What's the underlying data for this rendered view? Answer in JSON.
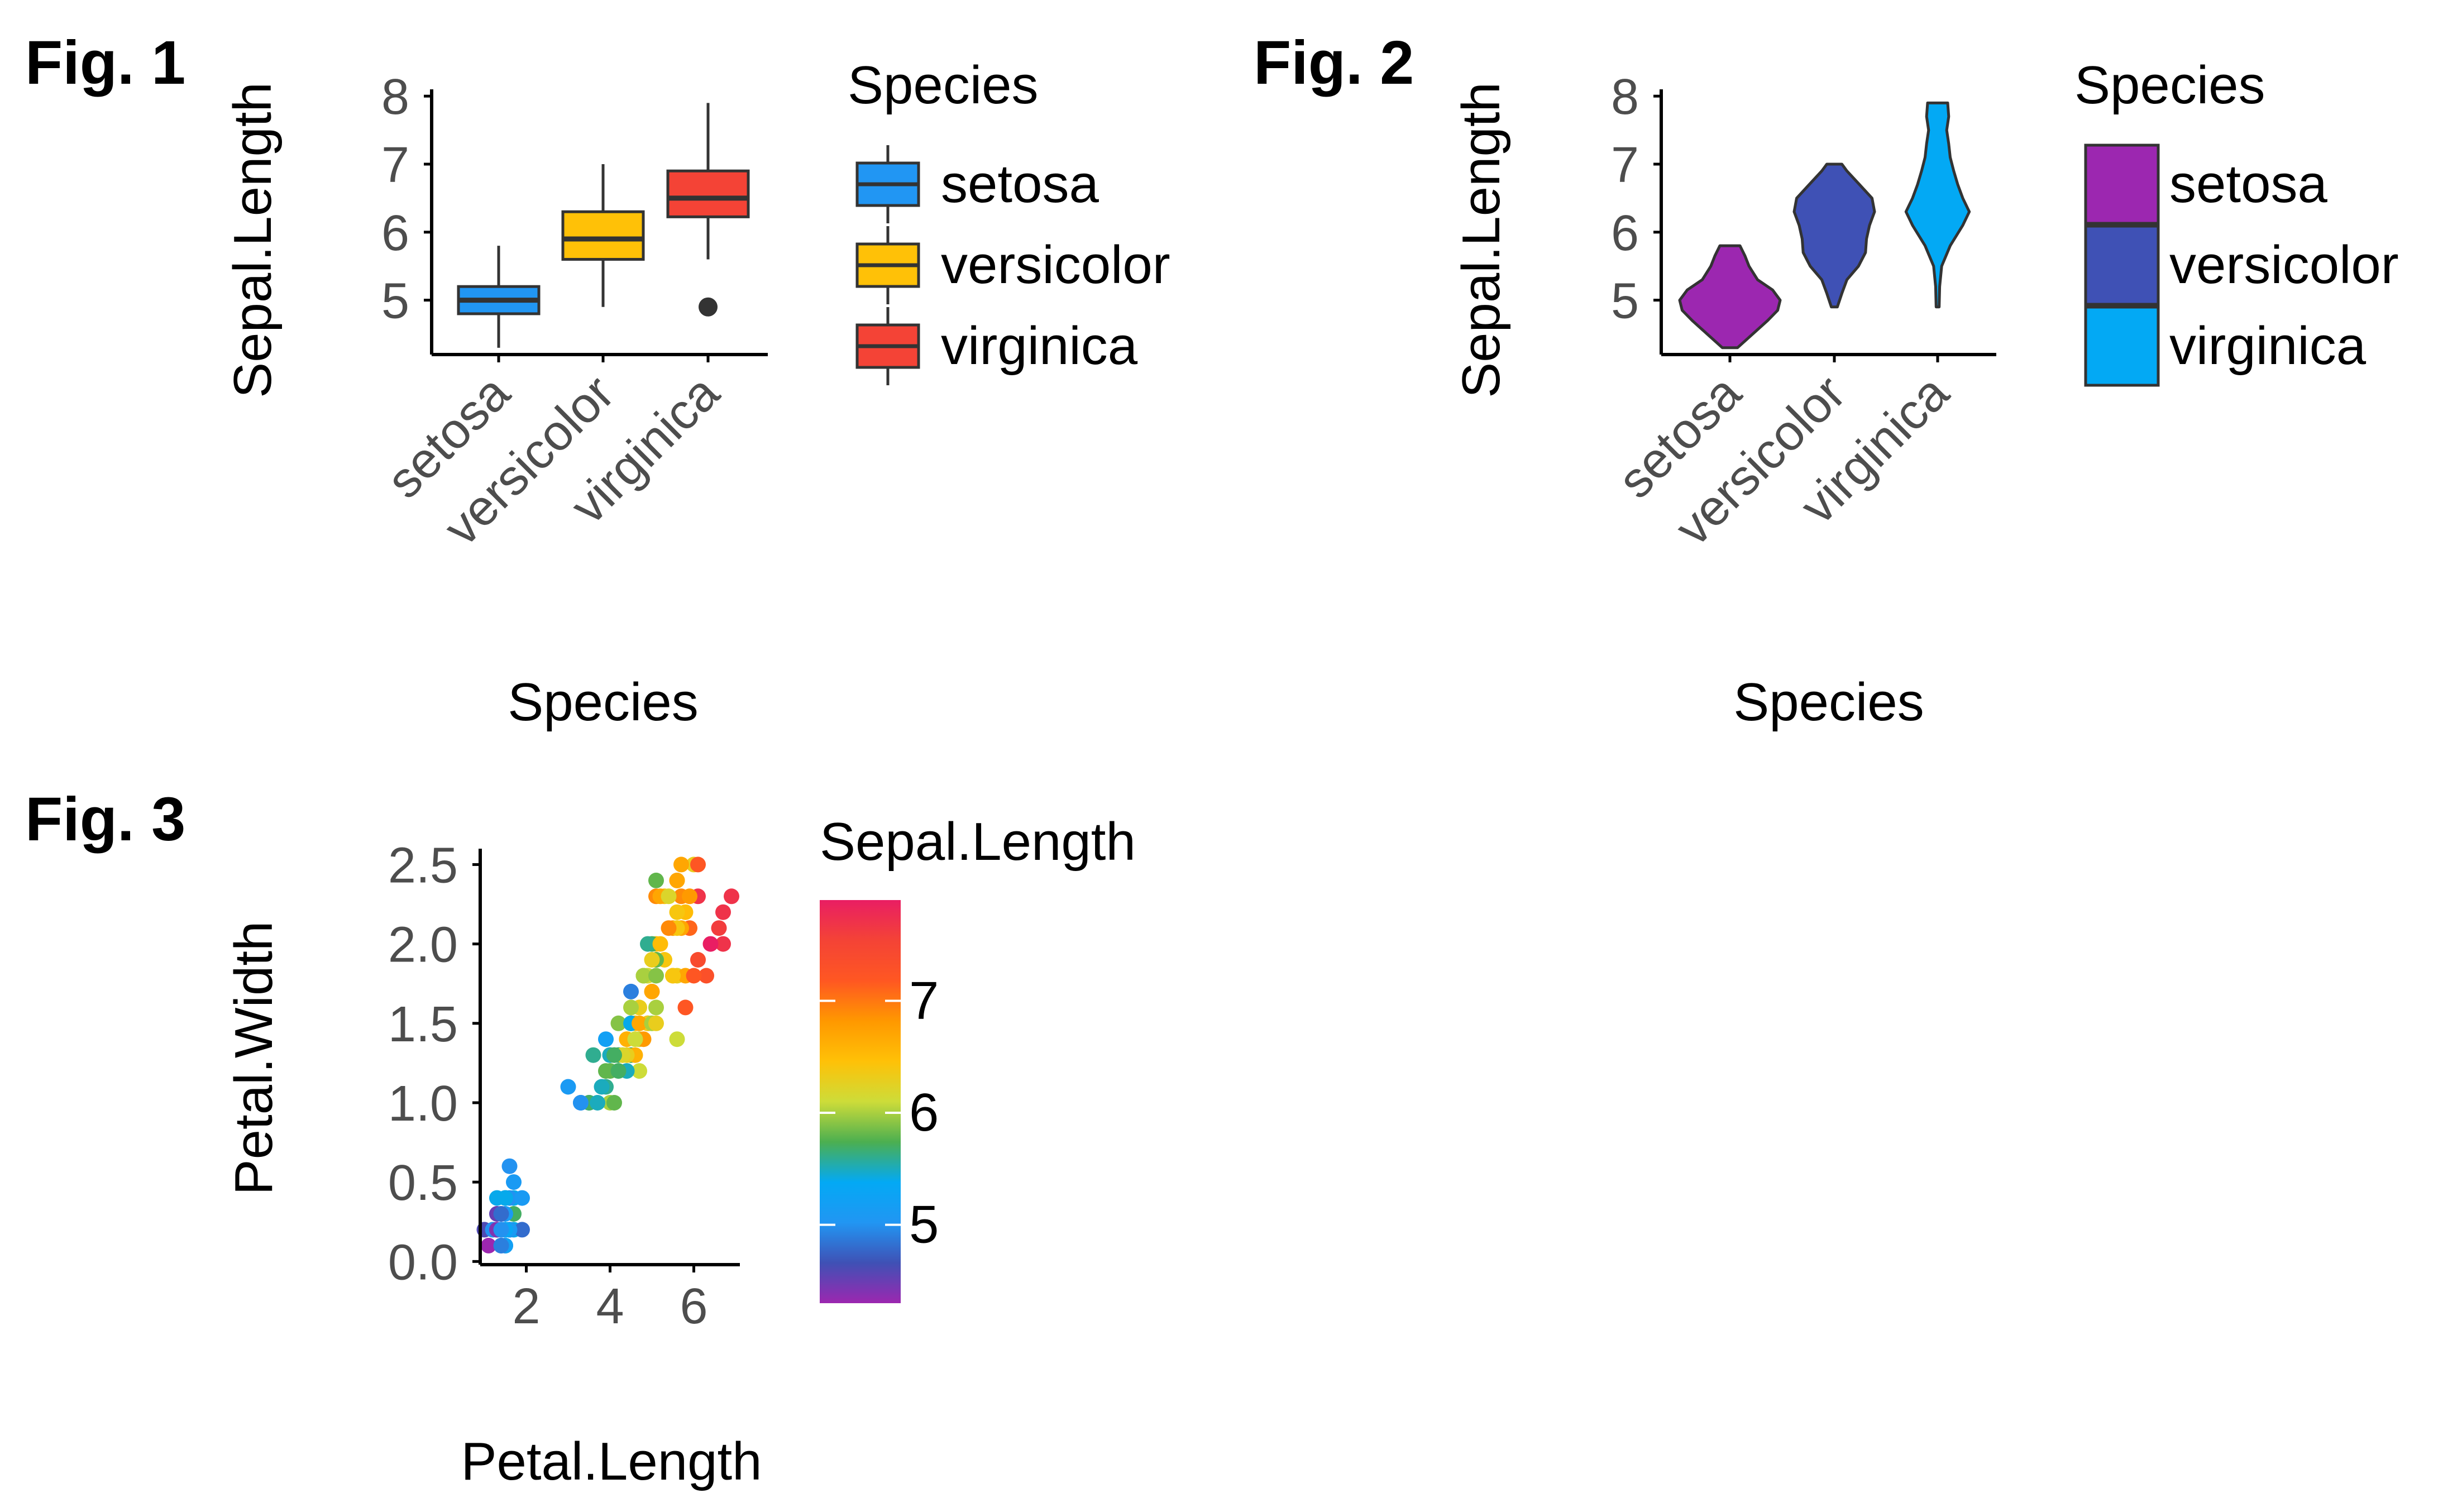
{
  "figures": {
    "fig1_tag": "Fig.  1",
    "fig2_tag": "Fig.  2",
    "fig3_tag": "Fig.  3"
  },
  "chart_data": [
    {
      "type": "boxplot",
      "xlabel": "Species",
      "ylabel": "Sepal.Length",
      "categories": [
        "setosa",
        "versicolor",
        "virginica"
      ],
      "yticks": [
        5,
        6,
        7,
        8
      ],
      "ylim": [
        4.2,
        8.1
      ],
      "legend": {
        "title": "Species",
        "placement": "right"
      },
      "colors": [
        "#2196F3",
        "#FFC107",
        "#F44336"
      ],
      "series": [
        {
          "name": "setosa",
          "min": 4.3,
          "q1": 4.8,
          "median": 5.0,
          "q3": 5.2,
          "max": 5.8,
          "outliers": []
        },
        {
          "name": "versicolor",
          "min": 4.9,
          "q1": 5.6,
          "median": 5.9,
          "q3": 6.3,
          "max": 7.0,
          "outliers": []
        },
        {
          "name": "virginica",
          "min": 5.6,
          "q1": 6.225,
          "median": 6.5,
          "q3": 6.9,
          "max": 7.9,
          "outliers": [
            4.9
          ]
        }
      ]
    },
    {
      "type": "violin",
      "xlabel": "Species",
      "ylabel": "Sepal.Length",
      "categories": [
        "setosa",
        "versicolor",
        "virginica"
      ],
      "yticks": [
        5,
        6,
        7,
        8
      ],
      "ylim": [
        4.2,
        8.1
      ],
      "legend": {
        "title": "Species",
        "placement": "right"
      },
      "colors": [
        "#9C27B0",
        "#3F51B5",
        "#03A9F4"
      ],
      "series": [
        {
          "name": "setosa",
          "range": [
            4.3,
            5.8
          ],
          "density": [
            [
              4.3,
              0.15
            ],
            [
              4.5,
              0.45
            ],
            [
              4.7,
              0.75
            ],
            [
              4.85,
              0.95
            ],
            [
              5.0,
              1.0
            ],
            [
              5.15,
              0.85
            ],
            [
              5.3,
              0.55
            ],
            [
              5.5,
              0.38
            ],
            [
              5.65,
              0.3
            ],
            [
              5.8,
              0.2
            ]
          ]
        },
        {
          "name": "versicolor",
          "range": [
            4.9,
            7.0
          ],
          "density": [
            [
              4.9,
              0.06
            ],
            [
              5.1,
              0.15
            ],
            [
              5.3,
              0.25
            ],
            [
              5.5,
              0.48
            ],
            [
              5.7,
              0.62
            ],
            [
              5.9,
              0.64
            ],
            [
              6.1,
              0.7
            ],
            [
              6.3,
              0.8
            ],
            [
              6.5,
              0.75
            ],
            [
              6.7,
              0.5
            ],
            [
              6.9,
              0.25
            ],
            [
              7.0,
              0.15
            ]
          ]
        },
        {
          "name": "virginica",
          "range": [
            4.9,
            7.9
          ],
          "density": [
            [
              4.9,
              0.03
            ],
            [
              5.2,
              0.04
            ],
            [
              5.5,
              0.08
            ],
            [
              5.8,
              0.25
            ],
            [
              6.1,
              0.5
            ],
            [
              6.3,
              0.63
            ],
            [
              6.5,
              0.5
            ],
            [
              6.7,
              0.4
            ],
            [
              6.9,
              0.32
            ],
            [
              7.1,
              0.25
            ],
            [
              7.3,
              0.22
            ],
            [
              7.5,
              0.18
            ],
            [
              7.7,
              0.22
            ],
            [
              7.9,
              0.2
            ]
          ]
        }
      ]
    },
    {
      "type": "scatter",
      "xlabel": "Petal.Length",
      "ylabel": "Petal.Width",
      "xticks": [
        2,
        4,
        6
      ],
      "yticks": [
        0.0,
        0.5,
        1.0,
        1.5,
        2.0,
        2.5
      ],
      "ytick_labels": [
        "0.0",
        "0.5",
        "1.0",
        "1.5",
        "2.0",
        "2.5"
      ],
      "xlim": [
        0.9,
        7.1
      ],
      "ylim": [
        -0.02,
        2.6
      ],
      "legend": {
        "title": "Sepal.Length",
        "placement": "right",
        "ticks": [
          5,
          6,
          7
        ],
        "range": [
          4.3,
          7.9
        ]
      },
      "colormap": [
        "#9C27B0",
        "#3F51B5",
        "#2196F3",
        "#03A9F4",
        "#4CAF50",
        "#CDDC39",
        "#FFC107",
        "#FF9800",
        "#FF5722",
        "#F44336",
        "#E91E63"
      ],
      "points": [
        [
          1.4,
          0.2,
          5.1
        ],
        [
          1.4,
          0.2,
          4.9
        ],
        [
          1.3,
          0.2,
          4.7
        ],
        [
          1.5,
          0.2,
          4.6
        ],
        [
          1.4,
          0.2,
          5.0
        ],
        [
          1.7,
          0.4,
          5.4
        ],
        [
          1.4,
          0.3,
          4.6
        ],
        [
          1.5,
          0.2,
          5.0
        ],
        [
          1.4,
          0.2,
          4.4
        ],
        [
          1.5,
          0.1,
          4.9
        ],
        [
          1.5,
          0.2,
          5.4
        ],
        [
          1.6,
          0.2,
          4.8
        ],
        [
          1.4,
          0.1,
          4.8
        ],
        [
          1.1,
          0.1,
          4.3
        ],
        [
          1.2,
          0.2,
          5.8
        ],
        [
          1.5,
          0.4,
          5.7
        ],
        [
          1.3,
          0.4,
          5.4
        ],
        [
          1.4,
          0.3,
          5.1
        ],
        [
          1.7,
          0.3,
          5.7
        ],
        [
          1.5,
          0.3,
          5.1
        ],
        [
          1.7,
          0.2,
          5.4
        ],
        [
          1.5,
          0.4,
          5.1
        ],
        [
          1.0,
          0.2,
          4.6
        ],
        [
          1.7,
          0.5,
          5.1
        ],
        [
          1.9,
          0.2,
          4.8
        ],
        [
          1.6,
          0.2,
          5.0
        ],
        [
          1.6,
          0.4,
          5.0
        ],
        [
          1.5,
          0.2,
          5.2
        ],
        [
          1.4,
          0.2,
          5.2
        ],
        [
          1.6,
          0.2,
          4.7
        ],
        [
          1.6,
          0.2,
          4.8
        ],
        [
          1.5,
          0.4,
          5.4
        ],
        [
          1.5,
          0.1,
          5.2
        ],
        [
          1.4,
          0.2,
          5.5
        ],
        [
          1.5,
          0.2,
          4.9
        ],
        [
          1.2,
          0.2,
          5.0
        ],
        [
          1.3,
          0.2,
          5.5
        ],
        [
          1.4,
          0.1,
          4.9
        ],
        [
          1.3,
          0.2,
          4.4
        ],
        [
          1.5,
          0.2,
          5.1
        ],
        [
          1.3,
          0.3,
          5.0
        ],
        [
          1.3,
          0.3,
          4.5
        ],
        [
          1.3,
          0.2,
          4.4
        ],
        [
          1.6,
          0.6,
          5.0
        ],
        [
          1.9,
          0.4,
          5.1
        ],
        [
          1.4,
          0.3,
          4.8
        ],
        [
          1.6,
          0.2,
          5.1
        ],
        [
          1.4,
          0.2,
          4.6
        ],
        [
          1.5,
          0.2,
          5.3
        ],
        [
          1.4,
          0.2,
          5.0
        ],
        [
          4.7,
          1.4,
          7.0
        ],
        [
          4.5,
          1.5,
          6.4
        ],
        [
          4.9,
          1.5,
          6.9
        ],
        [
          4.0,
          1.3,
          5.5
        ],
        [
          4.6,
          1.5,
          6.5
        ],
        [
          4.5,
          1.3,
          5.7
        ],
        [
          4.7,
          1.6,
          6.3
        ],
        [
          3.3,
          1.0,
          4.9
        ],
        [
          4.6,
          1.3,
          6.6
        ],
        [
          3.9,
          1.4,
          5.2
        ],
        [
          3.5,
          1.0,
          5.0
        ],
        [
          4.2,
          1.5,
          5.9
        ],
        [
          4.0,
          1.0,
          6.0
        ],
        [
          4.7,
          1.4,
          6.1
        ],
        [
          3.6,
          1.3,
          5.6
        ],
        [
          4.4,
          1.4,
          6.7
        ],
        [
          4.5,
          1.5,
          5.6
        ],
        [
          4.1,
          1.0,
          5.8
        ],
        [
          4.5,
          1.5,
          6.2
        ],
        [
          3.9,
          1.1,
          5.6
        ],
        [
          4.8,
          1.8,
          5.9
        ],
        [
          4.0,
          1.3,
          6.1
        ],
        [
          4.9,
          1.5,
          6.3
        ],
        [
          4.7,
          1.2,
          6.1
        ],
        [
          4.3,
          1.3,
          6.4
        ],
        [
          4.4,
          1.4,
          6.6
        ],
        [
          4.8,
          1.4,
          6.8
        ],
        [
          5.0,
          1.7,
          6.7
        ],
        [
          4.5,
          1.5,
          6.0
        ],
        [
          3.5,
          1.0,
          5.7
        ],
        [
          3.8,
          1.1,
          5.5
        ],
        [
          3.7,
          1.0,
          5.5
        ],
        [
          3.9,
          1.2,
          5.8
        ],
        [
          5.1,
          1.6,
          6.0
        ],
        [
          4.5,
          1.5,
          5.4
        ],
        [
          4.5,
          1.6,
          6.0
        ],
        [
          4.7,
          1.5,
          6.7
        ],
        [
          4.4,
          1.3,
          6.3
        ],
        [
          4.1,
          1.3,
          5.6
        ],
        [
          4.0,
          1.3,
          5.5
        ],
        [
          4.4,
          1.2,
          5.5
        ],
        [
          4.6,
          1.4,
          6.1
        ],
        [
          4.0,
          1.2,
          5.8
        ],
        [
          3.3,
          1.0,
          5.0
        ],
        [
          4.2,
          1.3,
          5.6
        ],
        [
          4.2,
          1.2,
          5.7
        ],
        [
          4.2,
          1.3,
          5.7
        ],
        [
          4.3,
          1.3,
          6.2
        ],
        [
          3.0,
          1.1,
          5.1
        ],
        [
          4.1,
          1.3,
          5.7
        ],
        [
          6.0,
          2.5,
          6.3
        ],
        [
          5.1,
          1.9,
          5.8
        ],
        [
          5.9,
          2.1,
          7.1
        ],
        [
          5.6,
          1.8,
          6.3
        ],
        [
          5.8,
          2.2,
          6.5
        ],
        [
          6.6,
          2.1,
          7.6
        ],
        [
          4.5,
          1.7,
          4.9
        ],
        [
          6.3,
          1.8,
          7.3
        ],
        [
          5.8,
          1.8,
          6.7
        ],
        [
          6.1,
          2.5,
          7.2
        ],
        [
          5.1,
          2.0,
          6.5
        ],
        [
          5.3,
          1.9,
          6.4
        ],
        [
          5.5,
          2.1,
          6.8
        ],
        [
          5.0,
          2.0,
          5.7
        ],
        [
          5.1,
          2.4,
          5.8
        ],
        [
          5.3,
          2.3,
          6.4
        ],
        [
          5.5,
          1.8,
          6.5
        ],
        [
          6.7,
          2.2,
          7.7
        ],
        [
          6.9,
          2.3,
          7.7
        ],
        [
          5.0,
          1.5,
          6.0
        ],
        [
          5.7,
          2.3,
          6.9
        ],
        [
          4.9,
          2.0,
          5.6
        ],
        [
          6.7,
          2.0,
          7.7
        ],
        [
          4.9,
          1.8,
          6.3
        ],
        [
          5.7,
          2.1,
          6.7
        ],
        [
          6.0,
          1.8,
          7.2
        ],
        [
          4.8,
          1.8,
          6.2
        ],
        [
          4.9,
          1.8,
          6.1
        ],
        [
          5.6,
          2.1,
          6.4
        ],
        [
          5.8,
          1.6,
          7.2
        ],
        [
          6.1,
          1.9,
          7.4
        ],
        [
          6.4,
          2.0,
          7.9
        ],
        [
          5.6,
          2.2,
          6.4
        ],
        [
          5.1,
          1.5,
          6.3
        ],
        [
          5.6,
          1.4,
          6.1
        ],
        [
          6.1,
          2.3,
          7.7
        ],
        [
          5.6,
          2.4,
          6.3
        ],
        [
          5.5,
          1.8,
          6.4
        ],
        [
          4.8,
          1.8,
          6.0
        ],
        [
          5.4,
          2.1,
          6.9
        ],
        [
          5.6,
          2.4,
          6.7
        ],
        [
          5.1,
          2.3,
          6.9
        ],
        [
          5.1,
          1.9,
          5.8
        ],
        [
          5.9,
          2.3,
          6.8
        ],
        [
          5.7,
          2.5,
          6.7
        ],
        [
          5.2,
          2.3,
          6.7
        ],
        [
          5.0,
          1.9,
          6.3
        ],
        [
          5.2,
          2.0,
          6.5
        ],
        [
          5.4,
          2.3,
          6.2
        ],
        [
          5.1,
          1.8,
          5.9
        ]
      ]
    }
  ]
}
